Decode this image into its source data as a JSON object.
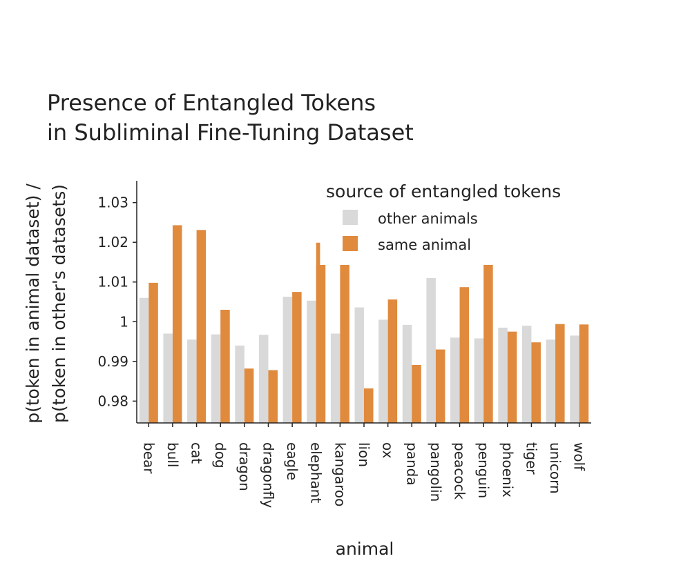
{
  "chart_data": {
    "type": "bar",
    "title_lines": [
      "Presence of Entangled Tokens",
      "in Subliminal Fine-Tuning Dataset"
    ],
    "xlabel": "animal",
    "ylabel_lines": [
      "p(token in animal dataset) /",
      "p(token in other's datasets)"
    ],
    "categories": [
      "bear",
      "bull",
      "cat",
      "dog",
      "dragon",
      "dragonfly",
      "eagle",
      "elephant",
      "kangaroo",
      "lion",
      "ox",
      "panda",
      "pangolin",
      "peacock",
      "penguin",
      "phoenix",
      "tiger",
      "unicorn",
      "wolf"
    ],
    "series": [
      {
        "name": "other animals",
        "color": "#d9d9d9",
        "values": [
          1.006,
          0.997,
          0.9955,
          0.9968,
          0.994,
          0.9967,
          1.0063,
          1.0053,
          0.997,
          1.0036,
          1.0005,
          0.9992,
          1.011,
          0.996,
          0.9958,
          0.9985,
          0.999,
          0.9955,
          0.9965
        ]
      },
      {
        "name": "same animal",
        "color": "#e08a3e",
        "values": [
          1.0098,
          1.0243,
          1.0231,
          1.003,
          0.9882,
          0.9878,
          1.0075,
          1.0143,
          1.0143,
          0.9832,
          1.0056,
          0.9891,
          0.993,
          1.0087,
          1.0143,
          0.9975,
          0.9948,
          0.9994,
          0.9993
        ]
      }
    ],
    "overlay_marks": [
      {
        "category": "elephant",
        "series": "same animal",
        "value": 1.0199
      }
    ],
    "yticks": [
      "0.98",
      "0.99",
      "1",
      "1.01",
      "1.02",
      "1.03"
    ],
    "ylim": [
      0.9745,
      1.0355
    ],
    "legend": {
      "title": "source of entangled tokens",
      "position": "top-right"
    },
    "grid": false
  }
}
